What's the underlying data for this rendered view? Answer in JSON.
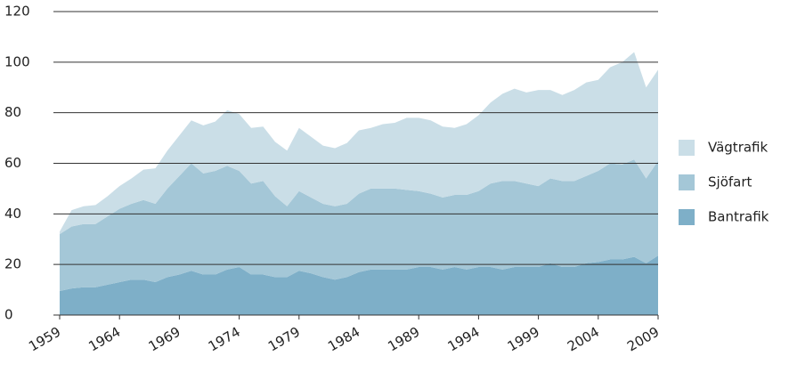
{
  "chart_data": {
    "type": "stacked-area",
    "x": [
      1959,
      1960,
      1961,
      1962,
      1963,
      1964,
      1965,
      1966,
      1967,
      1968,
      1969,
      1970,
      1971,
      1972,
      1973,
      1974,
      1975,
      1976,
      1977,
      1978,
      1979,
      1980,
      1981,
      1982,
      1983,
      1984,
      1985,
      1986,
      1987,
      1988,
      1989,
      1990,
      1991,
      1992,
      1993,
      1994,
      1995,
      1996,
      1997,
      1998,
      1999,
      2000,
      2001,
      2002,
      2003,
      2004,
      2005,
      2006,
      2007,
      2008,
      2009
    ],
    "series": [
      {
        "name": "Bantrafik",
        "color": "#7eafc8",
        "values": [
          9.5,
          10.5,
          11,
          11,
          12,
          13,
          14,
          14,
          13,
          15,
          16,
          17.5,
          16,
          16,
          18,
          19,
          16,
          16,
          15,
          15,
          17.5,
          16.5,
          15,
          14,
          15,
          17,
          18,
          18,
          18,
          18,
          19,
          19,
          18,
          19,
          18,
          19,
          19,
          18,
          19,
          19,
          19,
          20.5,
          19,
          19,
          20.5,
          21,
          22,
          22,
          23,
          20.5,
          23.5
        ]
      },
      {
        "name": "Sjöfart",
        "color": "#a4c7d7",
        "values": [
          22.5,
          24.5,
          25,
          25,
          27,
          29,
          30,
          31.5,
          31,
          35,
          39,
          42.5,
          40,
          41,
          41,
          38,
          36,
          37,
          32,
          28,
          31.5,
          30,
          29,
          29,
          29,
          31,
          32,
          32,
          32,
          31.5,
          30,
          29,
          28.5,
          28.5,
          29.5,
          30,
          33,
          35,
          34,
          33,
          32,
          33.5,
          34,
          34,
          34.5,
          36,
          38,
          37.5,
          38.5,
          33.5,
          37.5
        ]
      },
      {
        "name": "Vägtrafik",
        "color": "#cadee7",
        "values": [
          1,
          6.5,
          7,
          7.5,
          8,
          9,
          10,
          12,
          14,
          15,
          16,
          17,
          19,
          19.5,
          22,
          22.5,
          22,
          21.5,
          21.5,
          22,
          25,
          24,
          23,
          23,
          24,
          25,
          24,
          25.5,
          26,
          28.5,
          29,
          29,
          28,
          26.5,
          28,
          30,
          32,
          34.5,
          36.5,
          36,
          38,
          35,
          34,
          36,
          37,
          36,
          38,
          40.5,
          42.5,
          36,
          36
        ]
      }
    ],
    "xlim": [
      1959,
      2009
    ],
    "xticks": [
      1959,
      1964,
      1969,
      1974,
      1979,
      1984,
      1989,
      1994,
      1999,
      2004,
      2009
    ],
    "ylim": [
      0,
      120
    ],
    "yticks": [
      0,
      20,
      40,
      60,
      80,
      100,
      120
    ],
    "grid": true,
    "legend": "right"
  }
}
